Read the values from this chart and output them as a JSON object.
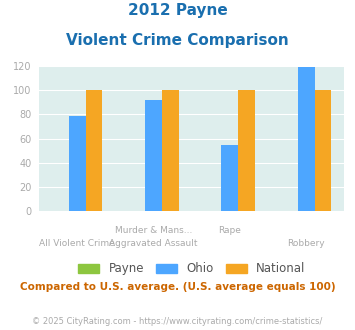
{
  "title_line1": "2012 Payne",
  "title_line2": "Violent Crime Comparison",
  "cat_labels_row1": [
    "",
    "Murder & Mans...",
    "Rape",
    ""
  ],
  "cat_labels_row2": [
    "All Violent Crime",
    "Aggravated Assault",
    "",
    "Robbery"
  ],
  "series": {
    "Payne": [
      0,
      0,
      0,
      0
    ],
    "Ohio": [
      79,
      92,
      55,
      119
    ],
    "National": [
      100,
      100,
      100,
      100
    ]
  },
  "colors": {
    "Payne": "#8dc63f",
    "Ohio": "#4da6ff",
    "National": "#f5a623"
  },
  "ylim": [
    0,
    120
  ],
  "yticks": [
    0,
    20,
    40,
    60,
    80,
    100,
    120
  ],
  "bg_color": "#deeeed",
  "title_color": "#1a6faf",
  "label_color": "#aaaaaa",
  "legend_color": "#555555",
  "note_text": "Compared to U.S. average. (U.S. average equals 100)",
  "note_color": "#cc6600",
  "footer_text": "© 2025 CityRating.com - https://www.cityrating.com/crime-statistics/",
  "footer_color": "#aaaaaa",
  "title_fontsize": 11,
  "subtitle_fontsize": 11,
  "tick_fontsize": 7,
  "label_fontsize": 6.5,
  "legend_fontsize": 8.5,
  "note_fontsize": 7.5,
  "footer_fontsize": 6
}
